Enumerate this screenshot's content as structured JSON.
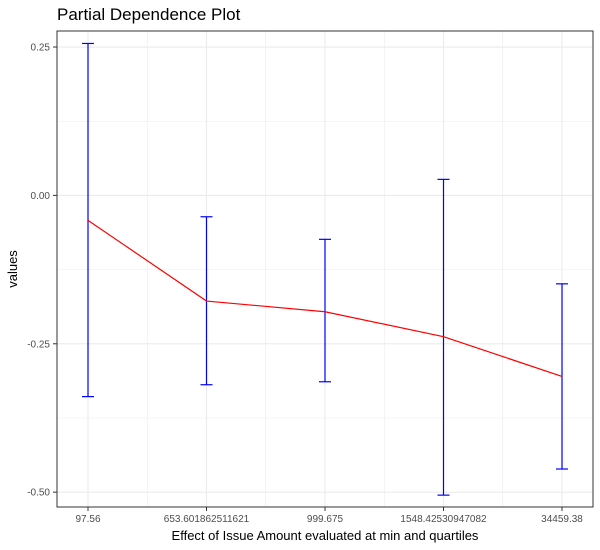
{
  "chart_data": {
    "type": "line",
    "title": "Partial Dependence Plot",
    "xlabel": "Effect of Issue Amount evaluated at min and quartiles",
    "ylabel": "values",
    "categories": [
      "97.56",
      "653.601862511621",
      "999.675",
      "1548.42530947082",
      "34459.38"
    ],
    "series": [
      {
        "values": [
          -0.042,
          -0.178,
          -0.196,
          -0.238,
          -0.305
        ],
        "lower": [
          -0.339,
          -0.319,
          -0.314,
          -0.505,
          -0.461
        ],
        "upper": [
          0.256,
          -0.036,
          -0.074,
          0.027,
          -0.149
        ]
      }
    ],
    "yticks": [
      0.25,
      0.0,
      -0.25,
      -0.5
    ],
    "ytick_labels": [
      "0.25",
      "0.00",
      "-0.25",
      "-0.50"
    ],
    "ylim": [
      -0.525,
      0.277
    ],
    "grid": true,
    "colors": {
      "line": "#ff0000",
      "errorbar": "#0000ff",
      "grid": "#ebebeb",
      "panel_border": "#333333"
    }
  }
}
